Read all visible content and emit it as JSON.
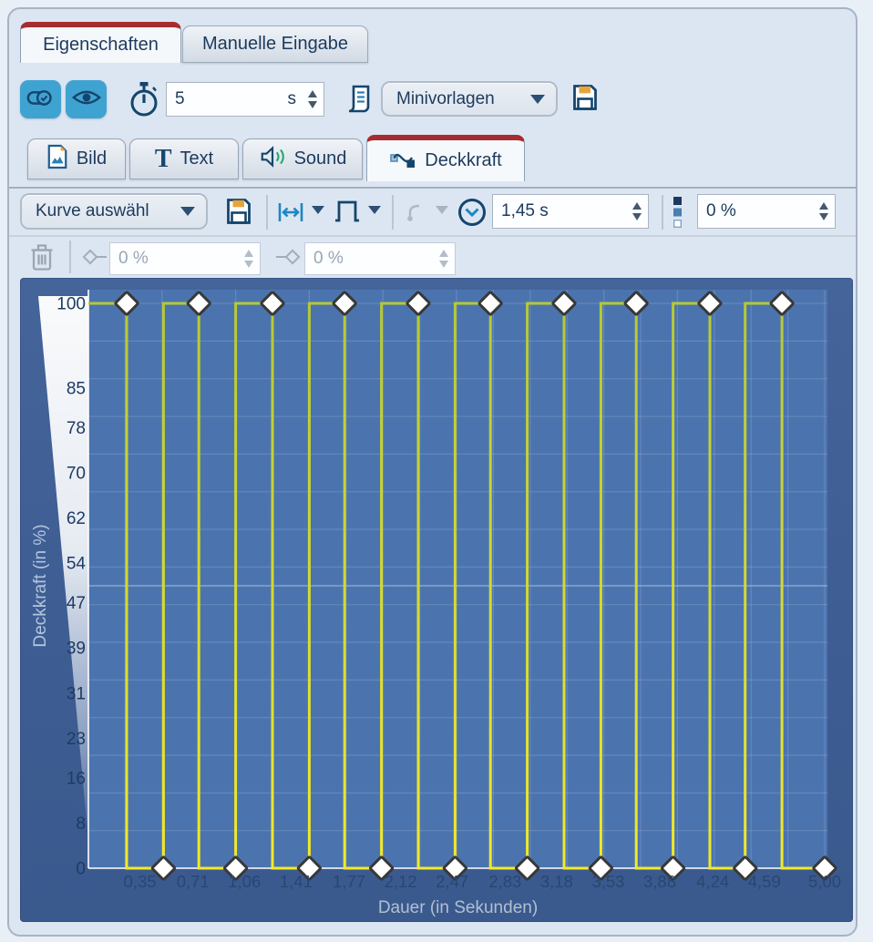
{
  "main_tabs": [
    {
      "label": "Eigenschaften",
      "active": true
    },
    {
      "label": "Manuelle Eingabe",
      "active": false
    }
  ],
  "toolbar": {
    "duration_value": "5",
    "duration_unit": "s",
    "template_select_value": "Minivorlagen"
  },
  "subtabs": [
    {
      "label": "Bild"
    },
    {
      "label": "Text"
    },
    {
      "label": "Sound"
    },
    {
      "label": "Deckkraft",
      "active": true
    }
  ],
  "curve_toolbar": {
    "curve_select_value": "Kurve auswähl",
    "keyframe_time_value": "1,45 s",
    "keyframe_opacity_value": "0 %"
  },
  "segment_toolbar": {
    "start_opacity_value": "0 %",
    "end_opacity_value": "0 %"
  },
  "icons": [
    "link-toggle-icon",
    "eye-icon",
    "stopwatch-icon",
    "script-icon",
    "save-icon",
    "image-icon",
    "text-icon",
    "sound-icon",
    "opacity-curve-icon",
    "fit-width-icon",
    "caret-down-icon",
    "square-wave-icon",
    "curve-type-icon",
    "clock-icon",
    "opacity-steps-icon",
    "trash-icon",
    "keyframe-out-icon",
    "keyframe-in-icon"
  ],
  "colors": {
    "accent_blue": "#3fa3d2",
    "active_tab_red": "#a52c30",
    "navy_text": "#1c3a5e",
    "panel_blue": "#3e5d93",
    "plot_blue": "#4b74af",
    "grid_line": "rgba(255,255,255,0.14)",
    "curve_yellow_top": "#b5c934",
    "curve_yellow_bottom": "#f4e928",
    "marker_fill": "#ffffff",
    "marker_stroke": "#383838",
    "axis_line": "#ffffff"
  },
  "chart_data": {
    "type": "line",
    "title": "",
    "xlabel": "Dauer (in Sekunden)",
    "ylabel": "Deckkraft (in %)",
    "xlim": [
      0,
      5
    ],
    "ylim": [
      0,
      100
    ],
    "grid": true,
    "x_ticks": [
      "0,35",
      "0,71",
      "1,06",
      "1,41",
      "1,77",
      "2,12",
      "2,47",
      "2,83",
      "3,18",
      "3,53",
      "3,88",
      "4,24",
      "4,59",
      "5,00"
    ],
    "x_tick_values": [
      0.35,
      0.71,
      1.06,
      1.41,
      1.77,
      2.12,
      2.47,
      2.83,
      3.18,
      3.53,
      3.88,
      4.24,
      4.59,
      5.0
    ],
    "y_ticks": [
      "100",
      "85",
      "78",
      "70",
      "62",
      "54",
      "47",
      "39",
      "31",
      "23",
      "16",
      "8",
      "0"
    ],
    "y_tick_values": [
      100,
      85,
      78,
      70,
      62,
      54,
      47,
      39,
      31,
      23,
      16,
      8,
      0
    ],
    "interpolation": "step-start",
    "series": [
      {
        "name": "Deckkraft",
        "start_value": 100,
        "keyframes": [
          {
            "t": 0.26,
            "v": 100
          },
          {
            "t": 0.51,
            "v": 0
          },
          {
            "t": 0.75,
            "v": 100
          },
          {
            "t": 1.0,
            "v": 0
          },
          {
            "t": 1.25,
            "v": 100
          },
          {
            "t": 1.5,
            "v": 0
          },
          {
            "t": 1.74,
            "v": 100
          },
          {
            "t": 1.99,
            "v": 0
          },
          {
            "t": 2.24,
            "v": 100
          },
          {
            "t": 2.49,
            "v": 0
          },
          {
            "t": 2.73,
            "v": 100
          },
          {
            "t": 2.98,
            "v": 0
          },
          {
            "t": 3.23,
            "v": 100
          },
          {
            "t": 3.48,
            "v": 0
          },
          {
            "t": 3.72,
            "v": 100
          },
          {
            "t": 3.97,
            "v": 0
          },
          {
            "t": 4.22,
            "v": 100
          },
          {
            "t": 4.46,
            "v": 0
          },
          {
            "t": 4.71,
            "v": 100
          },
          {
            "t": 5.0,
            "v": 0
          }
        ]
      }
    ]
  }
}
